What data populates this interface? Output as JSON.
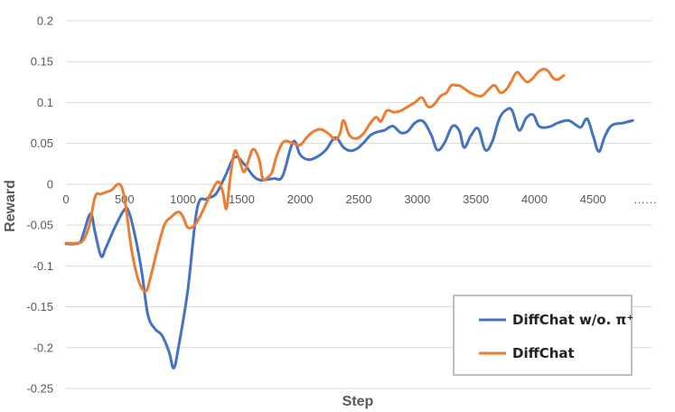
{
  "chart_data": {
    "type": "line",
    "title": "",
    "xlabel": "Step",
    "ylabel": "Reward",
    "xlim": [
      0,
      5000
    ],
    "ylim": [
      -0.25,
      0.2
    ],
    "x_ticks": [
      "0",
      "500",
      "1000",
      "1500",
      "2000",
      "2500",
      "3000",
      "3500",
      "4000",
      "4500",
      "……"
    ],
    "y_ticks": [
      "0.2",
      "0.15",
      "0.1",
      "0.05",
      "0",
      "-0.05",
      "-0.1",
      "-0.15",
      "-0.2",
      "-0.25"
    ],
    "grid": true,
    "legend_position": "bottom-right",
    "series": [
      {
        "name": "DiffChat w/o. π⁺",
        "color": "#4472c4",
        "points": [
          [
            0,
            -0.073
          ],
          [
            110,
            -0.072
          ],
          [
            150,
            -0.06
          ],
          [
            210,
            -0.036
          ],
          [
            250,
            -0.06
          ],
          [
            300,
            -0.088
          ],
          [
            340,
            -0.078
          ],
          [
            420,
            -0.052
          ],
          [
            500,
            -0.031
          ],
          [
            540,
            -0.035
          ],
          [
            600,
            -0.07
          ],
          [
            650,
            -0.11
          ],
          [
            700,
            -0.16
          ],
          [
            760,
            -0.177
          ],
          [
            820,
            -0.185
          ],
          [
            880,
            -0.205
          ],
          [
            920,
            -0.225
          ],
          [
            960,
            -0.2
          ],
          [
            1040,
            -0.13
          ],
          [
            1120,
            -0.03
          ],
          [
            1200,
            -0.018
          ],
          [
            1280,
            -0.012
          ],
          [
            1360,
            0.01
          ],
          [
            1440,
            0.033
          ],
          [
            1520,
            0.025
          ],
          [
            1600,
            0.01
          ],
          [
            1660,
            0.005
          ],
          [
            1720,
            0.006
          ],
          [
            1780,
            0.007
          ],
          [
            1850,
            0.01
          ],
          [
            1940,
            0.052
          ],
          [
            2000,
            0.036
          ],
          [
            2070,
            0.03
          ],
          [
            2150,
            0.034
          ],
          [
            2220,
            0.042
          ],
          [
            2300,
            0.057
          ],
          [
            2370,
            0.045
          ],
          [
            2430,
            0.041
          ],
          [
            2490,
            0.044
          ],
          [
            2550,
            0.052
          ],
          [
            2600,
            0.06
          ],
          [
            2660,
            0.064
          ],
          [
            2720,
            0.066
          ],
          [
            2790,
            0.071
          ],
          [
            2860,
            0.063
          ],
          [
            2920,
            0.065
          ],
          [
            2980,
            0.075
          ],
          [
            3050,
            0.077
          ],
          [
            3120,
            0.06
          ],
          [
            3170,
            0.042
          ],
          [
            3230,
            0.05
          ],
          [
            3300,
            0.071
          ],
          [
            3360,
            0.065
          ],
          [
            3400,
            0.045
          ],
          [
            3460,
            0.06
          ],
          [
            3520,
            0.068
          ],
          [
            3580,
            0.042
          ],
          [
            3640,
            0.052
          ],
          [
            3700,
            0.08
          ],
          [
            3760,
            0.091
          ],
          [
            3810,
            0.09
          ],
          [
            3870,
            0.066
          ],
          [
            3930,
            0.081
          ],
          [
            3990,
            0.085
          ],
          [
            4040,
            0.071
          ],
          [
            4120,
            0.07
          ],
          [
            4200,
            0.075
          ],
          [
            4290,
            0.078
          ],
          [
            4360,
            0.072
          ],
          [
            4400,
            0.07
          ],
          [
            4450,
            0.08
          ],
          [
            4500,
            0.06
          ],
          [
            4550,
            0.04
          ],
          [
            4600,
            0.058
          ],
          [
            4660,
            0.072
          ],
          [
            4760,
            0.075
          ],
          [
            4840,
            0.078
          ]
        ]
      },
      {
        "name": "DiffChat",
        "color": "#ed7d31",
        "points": [
          [
            0,
            -0.072
          ],
          [
            100,
            -0.072
          ],
          [
            150,
            -0.068
          ],
          [
            200,
            -0.05
          ],
          [
            250,
            -0.015
          ],
          [
            300,
            -0.012
          ],
          [
            380,
            -0.008
          ],
          [
            480,
            -0.005
          ],
          [
            560,
            -0.08
          ],
          [
            620,
            -0.118
          ],
          [
            680,
            -0.131
          ],
          [
            720,
            -0.115
          ],
          [
            780,
            -0.08
          ],
          [
            840,
            -0.05
          ],
          [
            900,
            -0.04
          ],
          [
            960,
            -0.034
          ],
          [
            1000,
            -0.04
          ],
          [
            1040,
            -0.053
          ],
          [
            1100,
            -0.05
          ],
          [
            1160,
            -0.035
          ],
          [
            1240,
            -0.01
          ],
          [
            1300,
            0.003
          ],
          [
            1340,
            -0.01
          ],
          [
            1370,
            -0.03
          ],
          [
            1400,
            0.005
          ],
          [
            1440,
            0.04
          ],
          [
            1480,
            0.03
          ],
          [
            1520,
            0.015
          ],
          [
            1560,
            0.03
          ],
          [
            1600,
            0.043
          ],
          [
            1650,
            0.03
          ],
          [
            1680,
            0.007
          ],
          [
            1720,
            0.008
          ],
          [
            1760,
            0.015
          ],
          [
            1800,
            0.035
          ],
          [
            1860,
            0.052
          ],
          [
            1940,
            0.05
          ],
          [
            2000,
            0.048
          ],
          [
            2060,
            0.058
          ],
          [
            2120,
            0.065
          ],
          [
            2180,
            0.067
          ],
          [
            2240,
            0.062
          ],
          [
            2300,
            0.055
          ],
          [
            2340,
            0.062
          ],
          [
            2370,
            0.078
          ],
          [
            2420,
            0.06
          ],
          [
            2480,
            0.056
          ],
          [
            2540,
            0.062
          ],
          [
            2600,
            0.075
          ],
          [
            2650,
            0.082
          ],
          [
            2690,
            0.077
          ],
          [
            2740,
            0.09
          ],
          [
            2800,
            0.088
          ],
          [
            2860,
            0.09
          ],
          [
            2920,
            0.095
          ],
          [
            2980,
            0.1
          ],
          [
            3040,
            0.106
          ],
          [
            3090,
            0.095
          ],
          [
            3140,
            0.097
          ],
          [
            3200,
            0.108
          ],
          [
            3250,
            0.112
          ],
          [
            3290,
            0.121
          ],
          [
            3330,
            0.121
          ],
          [
            3370,
            0.12
          ],
          [
            3420,
            0.115
          ],
          [
            3480,
            0.11
          ],
          [
            3550,
            0.108
          ],
          [
            3610,
            0.116
          ],
          [
            3660,
            0.121
          ],
          [
            3710,
            0.112
          ],
          [
            3760,
            0.116
          ],
          [
            3800,
            0.125
          ],
          [
            3850,
            0.137
          ],
          [
            3900,
            0.13
          ],
          [
            3940,
            0.125
          ],
          [
            3990,
            0.13
          ],
          [
            4030,
            0.137
          ],
          [
            4080,
            0.141
          ],
          [
            4120,
            0.138
          ],
          [
            4160,
            0.13
          ],
          [
            4200,
            0.128
          ],
          [
            4250,
            0.133
          ]
        ]
      }
    ]
  }
}
